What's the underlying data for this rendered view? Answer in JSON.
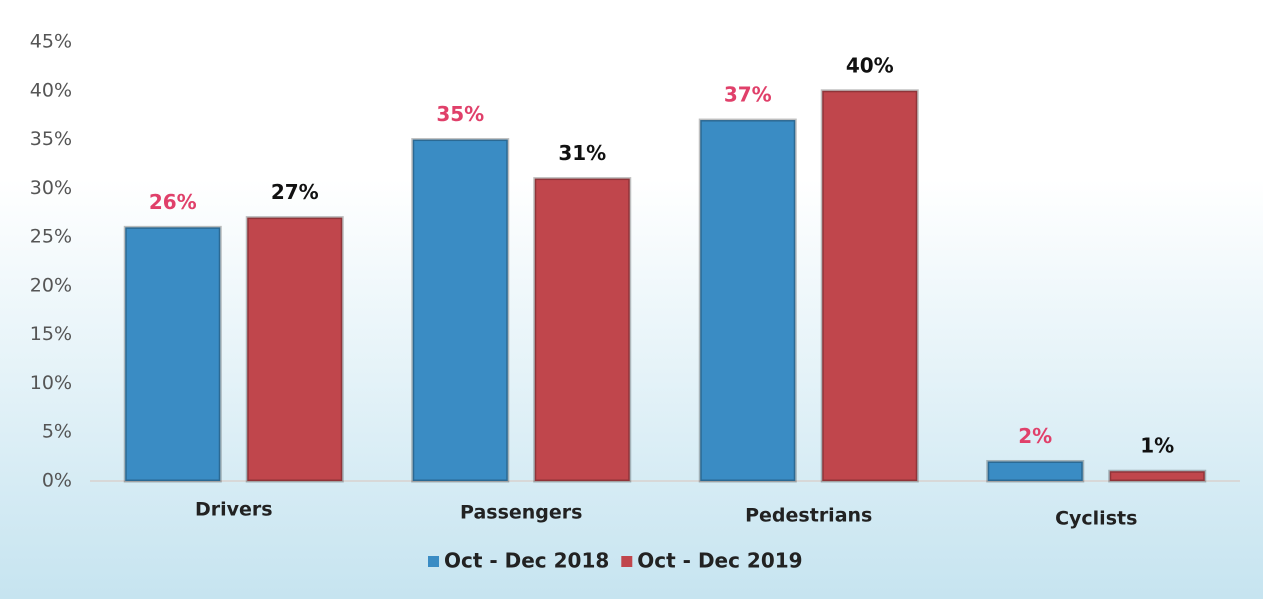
{
  "chart_data": {
    "type": "bar",
    "categories": [
      "Drivers",
      "Passengers",
      "Pedestrians",
      "Cyclists"
    ],
    "series": [
      {
        "name": "Oct - Dec 2018",
        "color": "#3a8cc4",
        "label_color": "#e0406a",
        "values": [
          26,
          35,
          37,
          2
        ],
        "value_labels": [
          "26%",
          "35%",
          "37%",
          "2%"
        ]
      },
      {
        "name": "Oct - Dec 2019",
        "color": "#c0464c",
        "label_color": "#111111",
        "values": [
          27,
          31,
          40,
          1
        ],
        "value_labels": [
          "27%",
          "31%",
          "40%",
          "1%"
        ]
      }
    ],
    "ylim": [
      0,
      45
    ],
    "yticks": [
      {
        "value": 0,
        "label": "0%"
      },
      {
        "value": 5,
        "label": "5%"
      },
      {
        "value": 10,
        "label": "10%"
      },
      {
        "value": 15,
        "label": "15%"
      },
      {
        "value": 20,
        "label": "20%"
      },
      {
        "value": 25,
        "label": "25%"
      },
      {
        "value": 30,
        "label": "30%"
      },
      {
        "value": 35,
        "label": "35%"
      },
      {
        "value": 40,
        "label": "40%"
      },
      {
        "value": 45,
        "label": "45%"
      }
    ],
    "grid": false,
    "legend": "bottom"
  }
}
